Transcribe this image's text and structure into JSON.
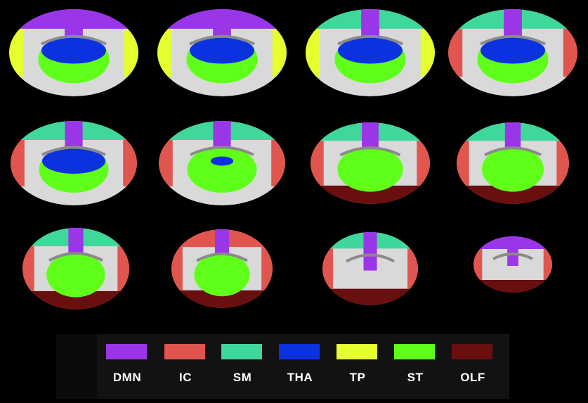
{
  "legend": {
    "items": [
      {
        "label": "DMN",
        "color": "#9b35e8"
      },
      {
        "label": "IC",
        "color": "#e0554e"
      },
      {
        "label": "SM",
        "color": "#3fd79a"
      },
      {
        "label": "THA",
        "color": "#0c32e0"
      },
      {
        "label": "TP",
        "color": "#e6ff2e"
      },
      {
        "label": "ST",
        "color": "#60ff1a"
      },
      {
        "label": "OLF",
        "color": "#6a0f0f"
      }
    ]
  },
  "colors": {
    "tissue": "#d9d9d9",
    "ventricle": "#8a8a8a",
    "background": "#000000"
  }
}
